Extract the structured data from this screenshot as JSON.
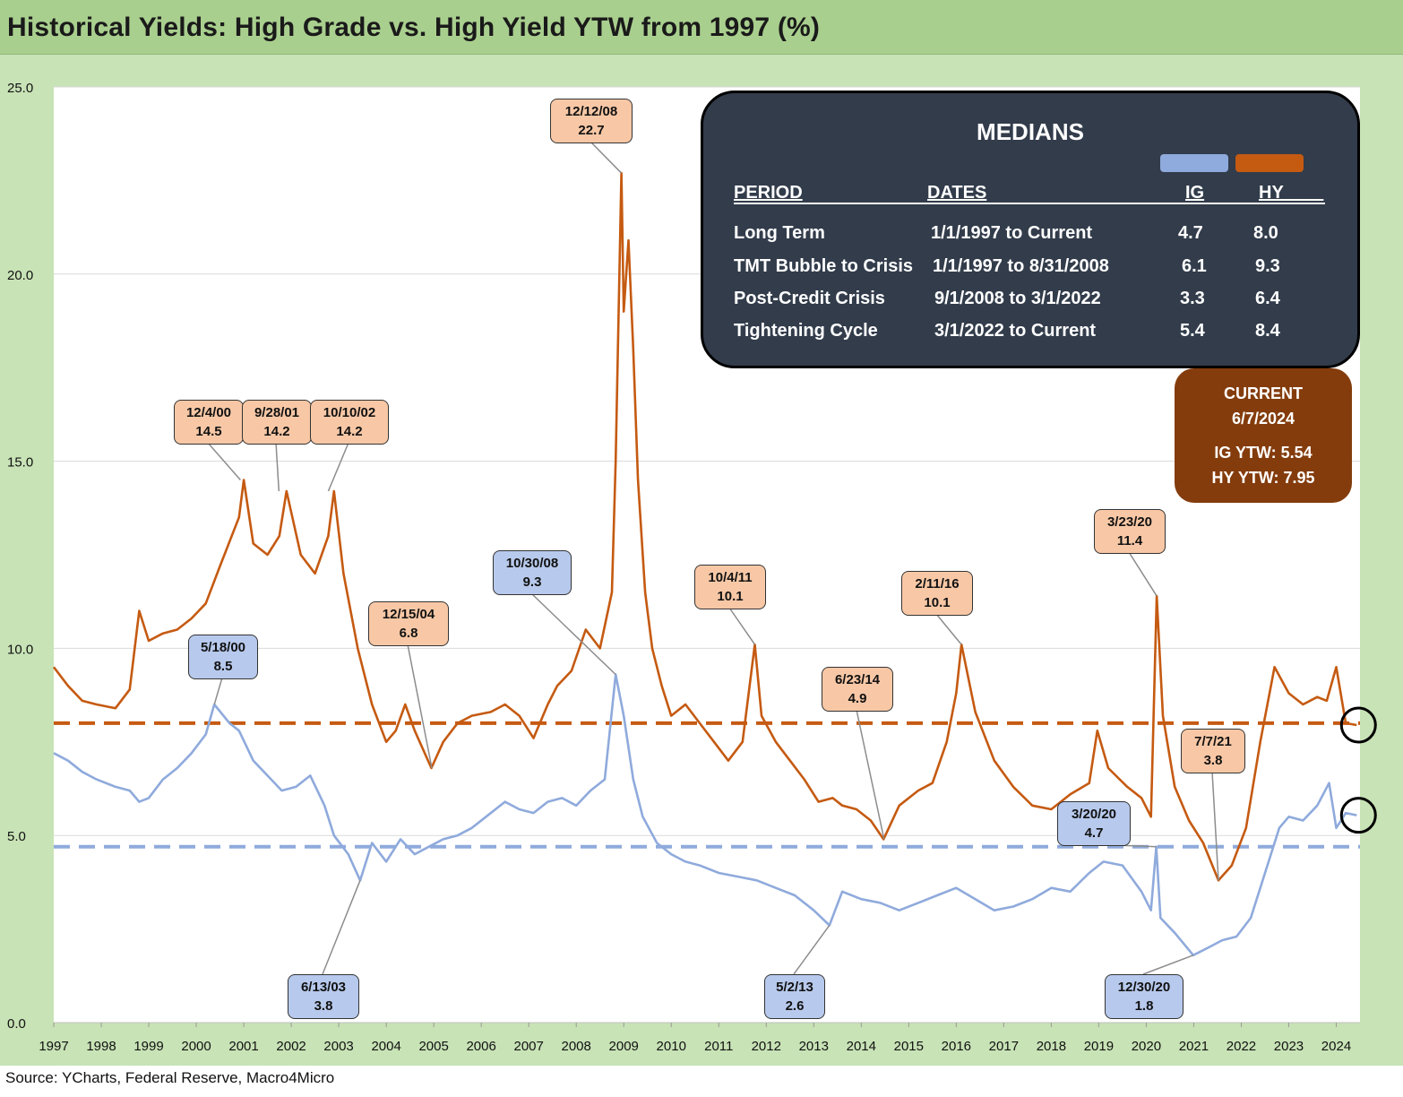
{
  "title": "Historical Yields: High Grade vs. High Yield YTW from 1997 (%)",
  "source": "Source: YCharts, Federal Reserve, Macro4Micro",
  "colors": {
    "hy": "#c55a11",
    "ig": "#8faadc",
    "hy_callout": "#f8c8a6",
    "ig_callout": "#b7c9ec",
    "frame": "#c8e3b6",
    "title_bar": "#a9cf8e",
    "medians_bg": "#323c4b",
    "current_bg": "#843c0c"
  },
  "medians": {
    "title": "MEDIANS",
    "headers": {
      "period": "PERIOD",
      "dates": "DATES",
      "ig": "IG",
      "hy": "HY____"
    },
    "rows": [
      {
        "period": "Long Term",
        "dates": "1/1/1997 to Current",
        "ig": "4.7",
        "hy": "8.0"
      },
      {
        "period": "TMT Bubble to Crisis",
        "dates": "1/1/1997 to 8/31/2008",
        "ig": "6.1",
        "hy": "9.3"
      },
      {
        "period": "Post-Credit Crisis",
        "dates": "9/1/2008 to 3/1/2022",
        "ig": "3.3",
        "hy": "6.4"
      },
      {
        "period": "Tightening Cycle",
        "dates": "3/1/2022 to Current",
        "ig": "5.4",
        "hy": "8.4"
      }
    ]
  },
  "current": {
    "heading": "CURRENT",
    "date": "6/7/2024",
    "ig": "IG YTW: 5.54",
    "hy": "HY YTW: 7.95"
  },
  "chart_data": {
    "type": "line",
    "title": "Historical Yields: High Grade vs. High Yield YTW from 1997 (%)",
    "xlim": [
      1997.0,
      2024.5
    ],
    "ylim": [
      0,
      25
    ],
    "y_ticks": [
      "0.0",
      "5.0",
      "10.0",
      "15.0",
      "20.0",
      "25.0"
    ],
    "x_ticks": [
      "1997",
      "1998",
      "1999",
      "2000",
      "2001",
      "2002",
      "2003",
      "2004",
      "2005",
      "2006",
      "2007",
      "2008",
      "2009",
      "2010",
      "2011",
      "2012",
      "2013",
      "2014",
      "2015",
      "2016",
      "2017",
      "2018",
      "2019",
      "2020",
      "2021",
      "2022",
      "2023",
      "2024"
    ],
    "grid": true,
    "legend": "swatches in medians box (IG light blue, HY orange)",
    "reference_lines": [
      {
        "series": "HY",
        "value": 8.0,
        "style": "dashed"
      },
      {
        "series": "IG",
        "value": 4.7,
        "style": "dashed"
      }
    ],
    "series": [
      {
        "name": "HY",
        "x": [
          1997.0,
          1997.3,
          1997.6,
          1997.9,
          1998.3,
          1998.6,
          1998.8,
          1999.0,
          1999.3,
          1999.6,
          1999.9,
          2000.2,
          2000.5,
          2000.9,
          2001.0,
          2001.2,
          2001.5,
          2001.75,
          2001.9,
          2002.2,
          2002.5,
          2002.78,
          2002.9,
          2003.1,
          2003.4,
          2003.7,
          2004.0,
          2004.2,
          2004.4,
          2004.6,
          2004.95,
          2005.2,
          2005.5,
          2005.8,
          2006.2,
          2006.5,
          2006.8,
          2007.1,
          2007.4,
          2007.6,
          2007.9,
          2008.2,
          2008.5,
          2008.75,
          2008.83,
          2008.95,
          2009.0,
          2009.1,
          2009.2,
          2009.3,
          2009.45,
          2009.6,
          2009.8,
          2010.0,
          2010.3,
          2010.6,
          2010.9,
          2011.2,
          2011.5,
          2011.76,
          2011.9,
          2012.2,
          2012.5,
          2012.8,
          2013.1,
          2013.4,
          2013.6,
          2013.9,
          2014.2,
          2014.47,
          2014.8,
          2015.2,
          2015.5,
          2015.8,
          2016.0,
          2016.11,
          2016.4,
          2016.8,
          2017.2,
          2017.6,
          2018.0,
          2018.4,
          2018.8,
          2018.97,
          2019.2,
          2019.6,
          2019.9,
          2020.1,
          2020.22,
          2020.35,
          2020.6,
          2020.9,
          2021.2,
          2021.52,
          2021.8,
          2022.1,
          2022.4,
          2022.7,
          2023.0,
          2023.3,
          2023.6,
          2023.8,
          2024.0,
          2024.2,
          2024.43
        ],
        "values": [
          9.5,
          9.0,
          8.6,
          8.5,
          8.4,
          8.9,
          11.0,
          10.2,
          10.4,
          10.5,
          10.8,
          11.2,
          12.2,
          13.5,
          14.5,
          12.8,
          12.5,
          13.0,
          14.2,
          12.5,
          12.0,
          13.0,
          14.2,
          12.0,
          10.0,
          8.5,
          7.5,
          7.8,
          8.5,
          7.8,
          6.8,
          7.5,
          8.0,
          8.2,
          8.3,
          8.5,
          8.2,
          7.6,
          8.5,
          9.0,
          9.4,
          10.5,
          10.0,
          11.5,
          15.0,
          22.7,
          19.0,
          20.9,
          18.0,
          14.5,
          11.5,
          10.0,
          9.0,
          8.2,
          8.5,
          8.0,
          7.5,
          7.0,
          7.5,
          10.1,
          8.2,
          7.5,
          7.0,
          6.5,
          5.9,
          6.0,
          5.8,
          5.7,
          5.4,
          4.9,
          5.8,
          6.2,
          6.4,
          7.5,
          8.8,
          10.1,
          8.3,
          7.0,
          6.3,
          5.8,
          5.7,
          6.1,
          6.4,
          7.8,
          6.8,
          6.3,
          6.0,
          5.5,
          11.4,
          8.2,
          6.3,
          5.4,
          4.8,
          3.8,
          4.2,
          5.2,
          7.5,
          9.5,
          8.8,
          8.5,
          8.7,
          8.6,
          9.5,
          8.0,
          7.95
        ]
      },
      {
        "name": "IG",
        "x": [
          1997.0,
          1997.3,
          1997.6,
          1997.9,
          1998.3,
          1998.6,
          1998.8,
          1999.0,
          1999.3,
          1999.6,
          1999.9,
          2000.2,
          2000.38,
          2000.7,
          2000.9,
          2001.2,
          2001.5,
          2001.8,
          2002.1,
          2002.4,
          2002.7,
          2002.9,
          2003.2,
          2003.45,
          2003.7,
          2004.0,
          2004.3,
          2004.6,
          2004.9,
          2005.2,
          2005.5,
          2005.8,
          2006.1,
          2006.5,
          2006.8,
          2007.1,
          2007.4,
          2007.7,
          2008.0,
          2008.3,
          2008.6,
          2008.83,
          2009.0,
          2009.2,
          2009.4,
          2009.7,
          2010.0,
          2010.3,
          2010.6,
          2011.0,
          2011.4,
          2011.8,
          2012.2,
          2012.6,
          2013.0,
          2013.33,
          2013.6,
          2014.0,
          2014.4,
          2014.8,
          2015.2,
          2015.6,
          2016.0,
          2016.4,
          2016.8,
          2017.2,
          2017.6,
          2018.0,
          2018.4,
          2018.8,
          2019.1,
          2019.5,
          2019.9,
          2020.1,
          2020.21,
          2020.3,
          2020.6,
          2020.99,
          2021.3,
          2021.6,
          2021.9,
          2022.2,
          2022.5,
          2022.8,
          2023.0,
          2023.3,
          2023.6,
          2023.85,
          2024.0,
          2024.2,
          2024.43
        ],
        "values": [
          7.2,
          7.0,
          6.7,
          6.5,
          6.3,
          6.2,
          5.9,
          6.0,
          6.5,
          6.8,
          7.2,
          7.7,
          8.5,
          8.0,
          7.8,
          7.0,
          6.6,
          6.2,
          6.3,
          6.6,
          5.8,
          5.0,
          4.5,
          3.8,
          4.8,
          4.3,
          4.9,
          4.5,
          4.7,
          4.9,
          5.0,
          5.2,
          5.5,
          5.9,
          5.7,
          5.6,
          5.9,
          6.0,
          5.8,
          6.2,
          6.5,
          9.3,
          8.2,
          6.5,
          5.5,
          4.8,
          4.5,
          4.3,
          4.2,
          4.0,
          3.9,
          3.8,
          3.6,
          3.4,
          3.0,
          2.6,
          3.5,
          3.3,
          3.2,
          3.0,
          3.2,
          3.4,
          3.6,
          3.3,
          3.0,
          3.1,
          3.3,
          3.6,
          3.5,
          4.0,
          4.3,
          4.2,
          3.5,
          3.0,
          4.7,
          2.8,
          2.4,
          1.8,
          2.0,
          2.2,
          2.3,
          2.8,
          4.0,
          5.2,
          5.5,
          5.4,
          5.8,
          6.4,
          5.2,
          5.6,
          5.54
        ]
      }
    ],
    "annotations": [
      {
        "label": "12/4/00",
        "value": "14.5",
        "series": "HY",
        "x": 2000.93,
        "y": 14.5
      },
      {
        "label": "9/28/01",
        "value": "14.2",
        "series": "HY",
        "x": 2001.74,
        "y": 14.2
      },
      {
        "label": "10/10/02",
        "value": "14.2",
        "series": "HY",
        "x": 2002.78,
        "y": 14.2
      },
      {
        "label": "12/12/08",
        "value": "22.7",
        "series": "HY",
        "x": 2008.95,
        "y": 22.7
      },
      {
        "label": "12/15/04",
        "value": "6.8",
        "series": "HY",
        "x": 2004.96,
        "y": 6.8
      },
      {
        "label": "10/4/11",
        "value": "10.1",
        "series": "HY",
        "x": 2011.76,
        "y": 10.1
      },
      {
        "label": "6/23/14",
        "value": "4.9",
        "series": "HY",
        "x": 2014.48,
        "y": 4.9
      },
      {
        "label": "2/11/16",
        "value": "10.1",
        "series": "HY",
        "x": 2016.11,
        "y": 10.1
      },
      {
        "label": "3/23/20",
        "value": "11.4",
        "series": "HY",
        "x": 2020.22,
        "y": 11.4
      },
      {
        "label": "7/7/21",
        "value": "3.8",
        "series": "HY",
        "x": 2021.52,
        "y": 3.8
      },
      {
        "label": "5/18/00",
        "value": "8.5",
        "series": "IG",
        "x": 2000.38,
        "y": 8.5
      },
      {
        "label": "10/30/08",
        "value": "9.3",
        "series": "IG",
        "x": 2008.83,
        "y": 9.3
      },
      {
        "label": "6/13/03",
        "value": "3.8",
        "series": "IG",
        "x": 2003.45,
        "y": 3.8
      },
      {
        "label": "5/2/13",
        "value": "2.6",
        "series": "IG",
        "x": 2013.33,
        "y": 2.6
      },
      {
        "label": "3/20/20",
        "value": "4.7",
        "series": "IG",
        "x": 2020.21,
        "y": 4.7
      },
      {
        "label": "12/30/20",
        "value": "1.8",
        "series": "IG",
        "x": 2020.99,
        "y": 1.8
      }
    ],
    "highlight_circles": [
      {
        "series": "HY",
        "x": 2024.43,
        "y": 7.95
      },
      {
        "series": "IG",
        "x": 2024.43,
        "y": 5.54
      }
    ]
  }
}
